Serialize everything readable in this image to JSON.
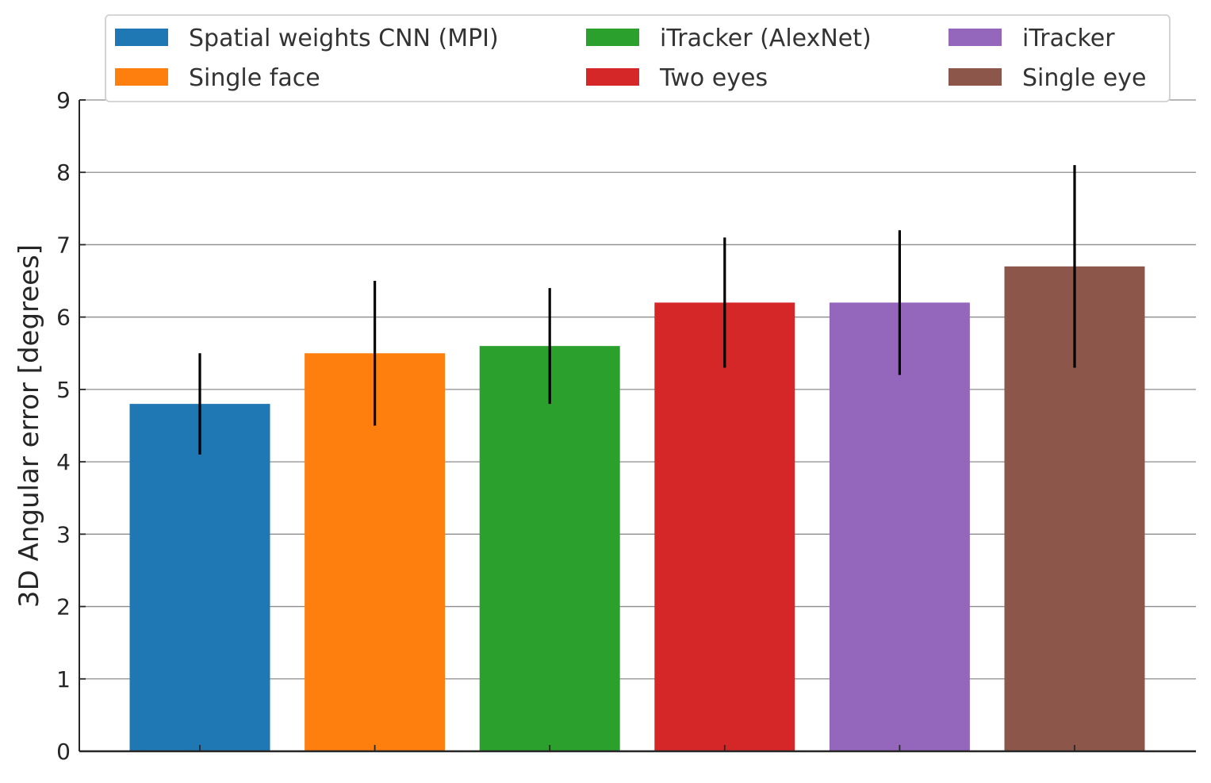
{
  "chart_data": {
    "type": "bar",
    "categories": [
      "Spatial weights CNN (MPI)",
      "Single face",
      "iTracker (AlexNet)",
      "Two eyes",
      "iTracker",
      "Single eye"
    ],
    "values": [
      4.8,
      5.5,
      5.6,
      6.2,
      6.2,
      6.7
    ],
    "error_low": [
      4.1,
      4.5,
      4.8,
      5.3,
      5.2,
      5.3
    ],
    "error_high": [
      5.5,
      6.5,
      6.4,
      7.1,
      7.2,
      8.1
    ],
    "colors": [
      "#1f77b4",
      "#ff7f0e",
      "#2ca02c",
      "#d62728",
      "#9467bd",
      "#8c564b"
    ],
    "ylabel": "3D Angular error [degrees]",
    "xlabel": "",
    "ylim": [
      0,
      9
    ],
    "yticks": [
      "0",
      "1",
      "2",
      "3",
      "4",
      "5",
      "6",
      "7",
      "8",
      "9"
    ],
    "grid": "horizontal",
    "legend": {
      "placement": "top",
      "columns": 3,
      "entries": [
        "Spatial weights CNN (MPI)",
        "Single face",
        "iTracker (AlexNet)",
        "Two eyes",
        "iTracker",
        "Single eye"
      ]
    }
  }
}
